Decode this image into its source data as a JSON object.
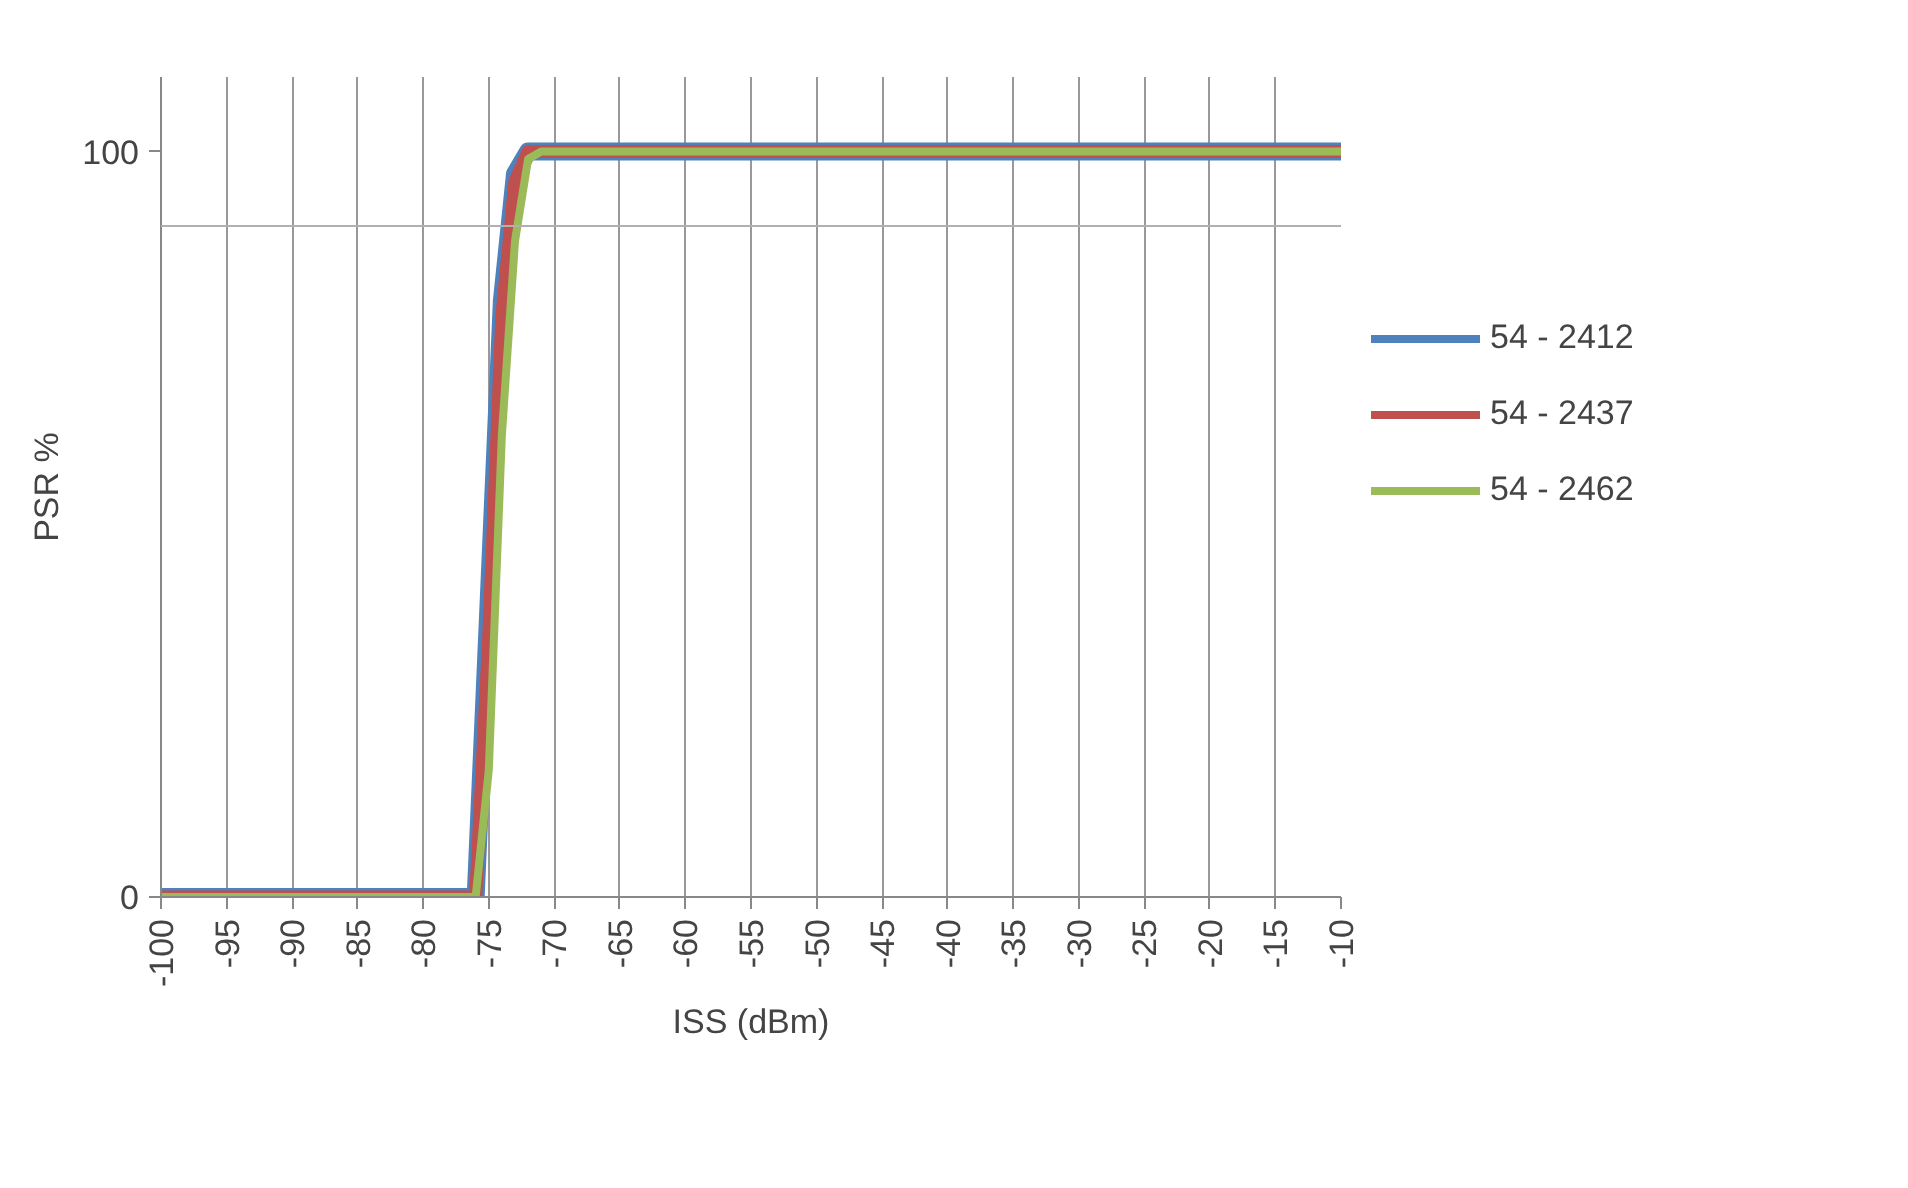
{
  "chart_data": {
    "type": "line",
    "xlabel": "ISS (dBm)",
    "ylabel": "PSR %",
    "xlim": [
      -100,
      -10
    ],
    "xticks": [
      -100,
      -95,
      -90,
      -85,
      -80,
      -75,
      -70,
      -65,
      -60,
      -55,
      -50,
      -45,
      -40,
      -35,
      -30,
      -25,
      -20,
      -15,
      -10
    ],
    "ylim": [
      0,
      110
    ],
    "yticks": [
      0,
      100
    ],
    "series": [
      {
        "name": "54 - 2412",
        "color": "#4f81bd",
        "x": [
          -100,
          -76,
          -75,
          -74,
          -73,
          -72,
          -71,
          -10
        ],
        "values": [
          0,
          0,
          40,
          80,
          97,
          100,
          100,
          100
        ]
      },
      {
        "name": "54 - 2437",
        "color": "#c0504d",
        "x": [
          -100,
          -76,
          -75,
          -74,
          -73,
          -72,
          -71,
          -10
        ],
        "values": [
          0,
          0,
          35,
          78,
          96,
          100,
          100,
          100
        ]
      },
      {
        "name": "54 - 2462",
        "color": "#9bbb59",
        "x": [
          -100,
          -76,
          -75,
          -74,
          -73,
          -72,
          -71,
          -10
        ],
        "values": [
          0,
          0,
          17,
          62,
          88,
          99,
          100,
          100
        ]
      }
    ],
    "ref_lines": [
      {
        "axis": "y",
        "value": 90,
        "label": null,
        "color": "#b0b0b0"
      }
    ],
    "grid": "x",
    "legend": "right",
    "marker": "none",
    "line_style": "solid"
  }
}
